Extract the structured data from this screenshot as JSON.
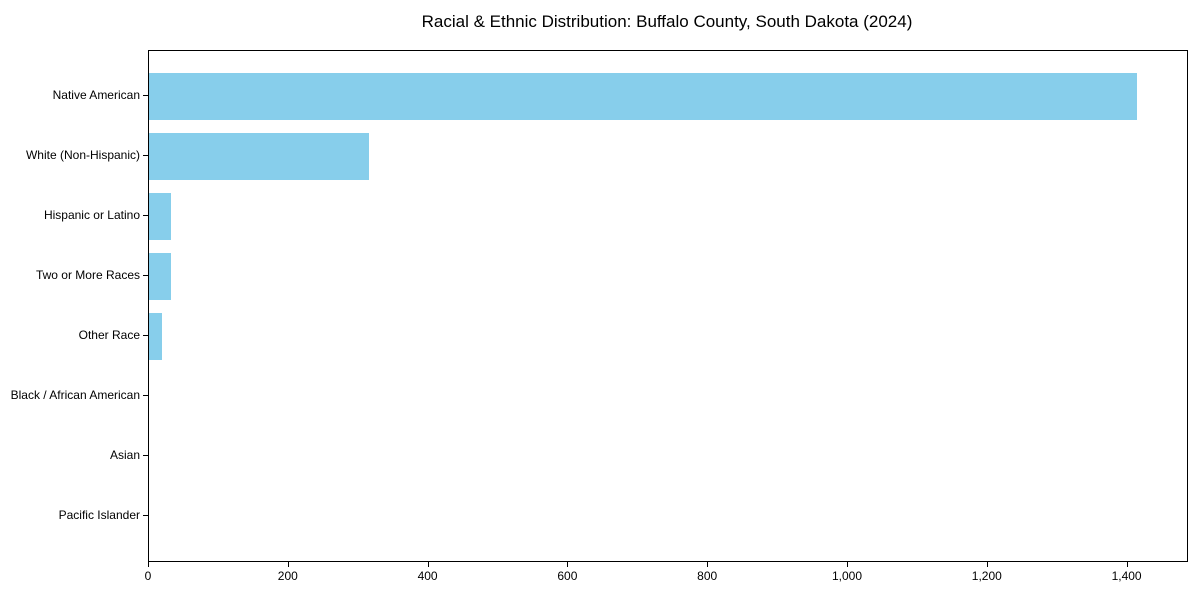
{
  "title": "Racial & Ethnic Distribution: Buffalo County, South Dakota (2024)",
  "chart_data": {
    "type": "bar",
    "orientation": "horizontal",
    "title": "Racial & Ethnic Distribution: Buffalo County, South Dakota (2024)",
    "xlabel": "",
    "ylabel": "",
    "categories": [
      "Native American",
      "White (Non-Hispanic)",
      "Hispanic or Latino",
      "Two or More Races",
      "Other Race",
      "Black / African American",
      "Asian",
      "Pacific Islander"
    ],
    "values": [
      1414,
      315,
      32,
      31,
      18,
      0,
      0,
      0
    ],
    "xlim": [
      0,
      1485
    ],
    "xticks": [
      0,
      200,
      400,
      600,
      800,
      1000,
      1200,
      1400
    ],
    "xtick_labels": [
      "0",
      "200",
      "400",
      "600",
      "800",
      "1,000",
      "1,200",
      "1,400"
    ],
    "bar_color": "#87CEEB",
    "axis_color": "#000000",
    "background_color": "#ffffff",
    "grid": false,
    "legend": null
  }
}
